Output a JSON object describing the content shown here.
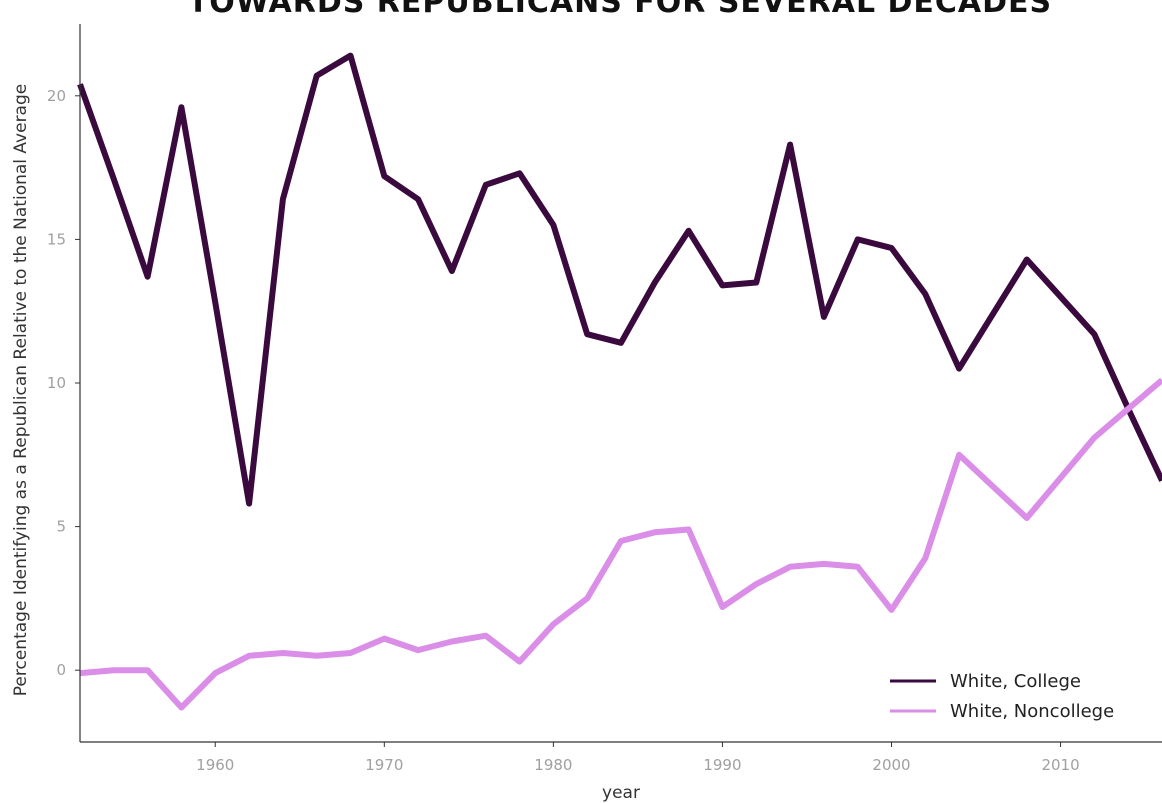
{
  "chart_data": {
    "type": "line",
    "title": "TOWARDS REPUBLICANS FOR SEVERAL DECADES",
    "xlabel": "year",
    "ylabel": "Percentage Identifying as a Republican Relative to the National Average",
    "xlim": [
      1952,
      2016
    ],
    "ylim": [
      -2.5,
      22.5
    ],
    "xticks": [
      1960,
      1970,
      1980,
      1990,
      2000,
      2010
    ],
    "yticks": [
      0,
      5,
      10,
      15,
      20
    ],
    "grid": false,
    "legend_position": "bottom-right",
    "series": [
      {
        "name": "White, College",
        "color": "#3a0a3e",
        "x": [
          1952,
          1954,
          1956,
          1958,
          1960,
          1962,
          1964,
          1966,
          1968,
          1970,
          1972,
          1974,
          1976,
          1978,
          1980,
          1982,
          1984,
          1986,
          1988,
          1990,
          1992,
          1994,
          1996,
          1998,
          2000,
          2002,
          2004,
          2006,
          2008,
          2010,
          2012,
          2014,
          2016
        ],
        "y": [
          20.4,
          17.1,
          13.7,
          19.6,
          12.8,
          5.8,
          16.4,
          20.7,
          21.4,
          17.2,
          16.4,
          13.9,
          16.9,
          17.3,
          15.5,
          11.7,
          11.4,
          13.5,
          15.3,
          13.4,
          13.5,
          18.3,
          12.3,
          15.0,
          14.7,
          13.1,
          10.5,
          12.4,
          14.3,
          13.0,
          11.7,
          9.1,
          6.6
        ]
      },
      {
        "name": "White, Noncollege",
        "color": "#da8ee7",
        "x": [
          1952,
          1954,
          1956,
          1958,
          1960,
          1962,
          1964,
          1966,
          1968,
          1970,
          1972,
          1974,
          1976,
          1978,
          1980,
          1982,
          1984,
          1986,
          1988,
          1990,
          1992,
          1994,
          1996,
          1998,
          2000,
          2002,
          2004,
          2006,
          2008,
          2010,
          2012,
          2014,
          2016
        ],
        "y": [
          -0.1,
          0.0,
          0.0,
          -1.3,
          -0.1,
          0.5,
          0.6,
          0.5,
          0.6,
          1.1,
          0.7,
          1.0,
          1.2,
          0.3,
          1.6,
          2.5,
          4.5,
          4.8,
          4.9,
          2.2,
          3.0,
          3.6,
          3.7,
          3.6,
          2.1,
          3.9,
          7.5,
          6.4,
          5.3,
          6.7,
          8.1,
          9.1,
          10.1
        ]
      }
    ]
  }
}
